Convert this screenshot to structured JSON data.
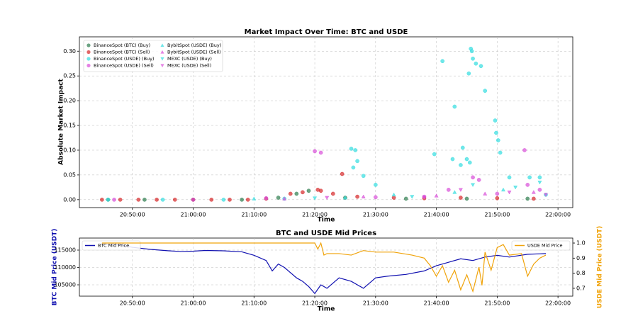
{
  "chart_data": [
    {
      "type": "scatter",
      "title": "Market Impact Over Time: BTC and USDE",
      "xlabel": "Time",
      "ylabel": "Absolute Market Impact",
      "xlim": [
        "20:41:17",
        "22:02:26"
      ],
      "xticks": [
        "20:50:00",
        "21:00:00",
        "21:10:00",
        "21:20:00",
        "21:30:00",
        "21:40:00",
        "21:50:00",
        "22:00:00"
      ],
      "ylim": [
        -0.016,
        0.329
      ],
      "yticks": [
        {
          "value": 0,
          "label": "0.00"
        },
        {
          "value": 0.05,
          "label": "0.05"
        },
        {
          "value": 0.1,
          "label": "0.10"
        },
        {
          "value": 0.15,
          "label": "0.15"
        },
        {
          "value": 0.2,
          "label": "0.20"
        },
        {
          "value": 0.25,
          "label": "0.25"
        },
        {
          "value": 0.3,
          "label": "0.30"
        }
      ],
      "grid": true,
      "legend": "upper left",
      "series": [
        {
          "name": "BinanceSpot (BTC) (Buy)",
          "color": "#2e7d4f",
          "marker": "circle",
          "x": [
            "20:46:00",
            "20:52:00",
            "21:00:00",
            "21:08:00",
            "21:14:00",
            "21:17:00",
            "21:19:00",
            "21:25:00",
            "21:35:00",
            "21:45:00",
            "21:55:00"
          ],
          "values": [
            0,
            0,
            0,
            0,
            0.004,
            0.012,
            0.018,
            0.004,
            0.002,
            0.002,
            0.002
          ]
        },
        {
          "name": "BinanceSpot (BTC) (Sell)",
          "color": "#d62728",
          "marker": "circle",
          "x": [
            "20:45:00",
            "20:48:00",
            "20:51:00",
            "20:54:00",
            "20:57:00",
            "21:00:00",
            "21:03:00",
            "21:06:00",
            "21:09:00",
            "21:12:00",
            "21:16:00",
            "21:18:00",
            "21:20:30",
            "21:21:00",
            "21:23:00",
            "21:24:30",
            "21:27:00",
            "21:33:00",
            "21:38:00",
            "21:44:00",
            "21:50:00",
            "21:56:00"
          ],
          "values": [
            0,
            0,
            0,
            0,
            0,
            0,
            0,
            0,
            0,
            0.002,
            0.012,
            0.015,
            0.02,
            0.018,
            0.012,
            0.052,
            0.006,
            0.004,
            0.003,
            0.004,
            0.003,
            0.002
          ]
        },
        {
          "name": "BinanceSpot (USDE) (Buy)",
          "color": "#33dde0",
          "marker": "circle",
          "x": [
            "20:46:00",
            "20:55:00",
            "21:05:00",
            "21:15:00",
            "21:26:00",
            "21:26:20",
            "21:26:40",
            "21:27:00",
            "21:28:00",
            "21:30:00",
            "21:39:40",
            "21:41:00",
            "21:42:40",
            "21:43:00",
            "21:44:00",
            "21:44:20",
            "21:45:00",
            "21:45:20",
            "21:45:30",
            "21:45:40",
            "21:45:50",
            "21:46:00",
            "21:46:30",
            "21:47:20",
            "21:48:00",
            "21:49:40",
            "21:49:50",
            "21:50:10",
            "21:50:30",
            "21:52:00",
            "21:55:20",
            "21:57:00",
            "21:58:00"
          ],
          "values": [
            0,
            0,
            0,
            0.002,
            0.103,
            0.065,
            0.1,
            0.078,
            0.048,
            0.03,
            0.092,
            0.28,
            0.082,
            0.188,
            0.07,
            0.105,
            0.082,
            0.255,
            0.075,
            0.305,
            0.3,
            0.285,
            0.275,
            0.27,
            0.22,
            0.16,
            0.135,
            0.12,
            0.095,
            0.045,
            0.045,
            0.045,
            0.01
          ]
        },
        {
          "name": "BinanceSpot (USDE) (Sell)",
          "color": "#d84fd8",
          "marker": "circle",
          "x": [
            "20:47:00",
            "21:00:00",
            "21:12:00",
            "21:20:00",
            "21:21:00",
            "21:30:00",
            "21:38:00",
            "21:42:00",
            "21:46:00",
            "21:47:00",
            "21:50:00",
            "21:54:30",
            "21:55:00",
            "21:57:00"
          ],
          "values": [
            0,
            0,
            0.003,
            0.098,
            0.095,
            0.005,
            0.006,
            0.02,
            0.045,
            0.04,
            0.012,
            0.1,
            0.03,
            0.02
          ]
        },
        {
          "name": "BybitSpot (USDE) (Buy)",
          "color": "#33dde0",
          "marker": "triangle-up",
          "x": [
            "21:10:00",
            "21:25:00",
            "21:33:00",
            "21:43:00",
            "21:51:00"
          ],
          "values": [
            0.002,
            0.004,
            0.01,
            0.015,
            0.02
          ]
        },
        {
          "name": "BybitSpot (USDE) (Sell)",
          "color": "#d84fd8",
          "marker": "triangle-up",
          "x": [
            "21:15:00",
            "21:28:00",
            "21:40:00",
            "21:48:00",
            "21:56:00"
          ],
          "values": [
            0.002,
            0.006,
            0.008,
            0.012,
            0.015
          ]
        },
        {
          "name": "MEXC (USDE) (Buy)",
          "color": "#33dde0",
          "marker": "triangle-down",
          "x": [
            "21:20:00",
            "21:36:00",
            "21:46:00",
            "21:53:00",
            "21:57:00"
          ],
          "values": [
            0.003,
            0.006,
            0.03,
            0.025,
            0.035
          ]
        },
        {
          "name": "MEXC (USDE) (Sell)",
          "color": "#d84fd8",
          "marker": "triangle-down",
          "x": [
            "21:22:00",
            "21:38:00",
            "21:44:00",
            "21:52:00",
            "21:58:00"
          ],
          "values": [
            0.004,
            0.005,
            0.02,
            0.015,
            0.01
          ]
        }
      ]
    },
    {
      "type": "line",
      "title": "BTC and USDE Mid Prices",
      "xlabel": "Time",
      "ylabel": "BTC Mid Price (USDT)",
      "y2label": "USDE Mid Price (USDT)",
      "xlim": [
        "20:41:17",
        "22:02:26"
      ],
      "xticks": [
        "20:50:00",
        "21:00:00",
        "21:10:00",
        "21:20:00",
        "21:30:00",
        "21:40:00",
        "21:50:00",
        "22:00:00"
      ],
      "ylim": [
        101735,
        118469
      ],
      "yticks": [
        105000,
        110000,
        115000
      ],
      "y2lim": [
        0.648,
        1.033
      ],
      "y2ticks": [
        0.7,
        0.8,
        0.9,
        {
          "value": 1.0,
          "label": "1.0"
        }
      ],
      "grid": true,
      "series": [
        {
          "name": "BTC Mid Price",
          "color": "#1010b0",
          "legend": "upper left",
          "x": [
            "20:45:00",
            "20:48:00",
            "20:50:00",
            "20:53:00",
            "20:56:00",
            "20:58:00",
            "21:00:00",
            "21:02:00",
            "21:05:00",
            "21:08:00",
            "21:10:00",
            "21:12:00",
            "21:13:00",
            "21:14:00",
            "21:15:00",
            "21:17:00",
            "21:18:00",
            "21:19:00",
            "21:20:00",
            "21:21:00",
            "21:22:00",
            "21:24:00",
            "21:26:00",
            "21:28:00",
            "21:30:00",
            "21:32:00",
            "21:35:00",
            "21:38:00",
            "21:40:00",
            "21:42:00",
            "21:44:00",
            "21:46:00",
            "21:48:00",
            "21:50:00",
            "21:52:00",
            "21:55:00",
            "21:58:00"
          ],
          "values": [
            116800,
            116500,
            115800,
            115200,
            114800,
            114600,
            114700,
            114900,
            114800,
            114500,
            113500,
            112000,
            109000,
            111000,
            110000,
            107000,
            106000,
            104500,
            102500,
            105000,
            104000,
            107000,
            106000,
            104000,
            107000,
            107500,
            108000,
            109000,
            110500,
            111500,
            112500,
            112000,
            113000,
            113500,
            113000,
            113800,
            114000
          ]
        },
        {
          "name": "USDE Mid Price",
          "color": "#f0a30a",
          "axis": "y2",
          "legend": "upper right",
          "x": [
            "20:45:00",
            "21:00:00",
            "21:10:00",
            "21:20:00",
            "21:20:30",
            "21:21:00",
            "21:21:30",
            "21:22:00",
            "21:24:00",
            "21:26:00",
            "21:28:00",
            "21:30:00",
            "21:33:00",
            "21:36:00",
            "21:38:00",
            "21:39:00",
            "21:40:00",
            "21:41:00",
            "21:42:00",
            "21:43:00",
            "21:44:00",
            "21:45:00",
            "21:46:00",
            "21:47:00",
            "21:47:30",
            "21:48:00",
            "21:49:00",
            "21:50:00",
            "21:51:00",
            "21:52:00",
            "21:54:00",
            "21:55:00",
            "21:56:00",
            "21:57:00",
            "21:58:00"
          ],
          "values": [
            1.0,
            1.0,
            1.0,
            1.0,
            0.96,
            1.0,
            0.92,
            0.93,
            0.93,
            0.92,
            0.95,
            0.94,
            0.94,
            0.92,
            0.9,
            0.85,
            0.78,
            0.85,
            0.74,
            0.82,
            0.69,
            0.79,
            0.68,
            0.84,
            0.72,
            0.94,
            0.82,
            0.97,
            0.99,
            0.92,
            0.93,
            0.78,
            0.86,
            0.9,
            0.92
          ]
        }
      ]
    }
  ]
}
